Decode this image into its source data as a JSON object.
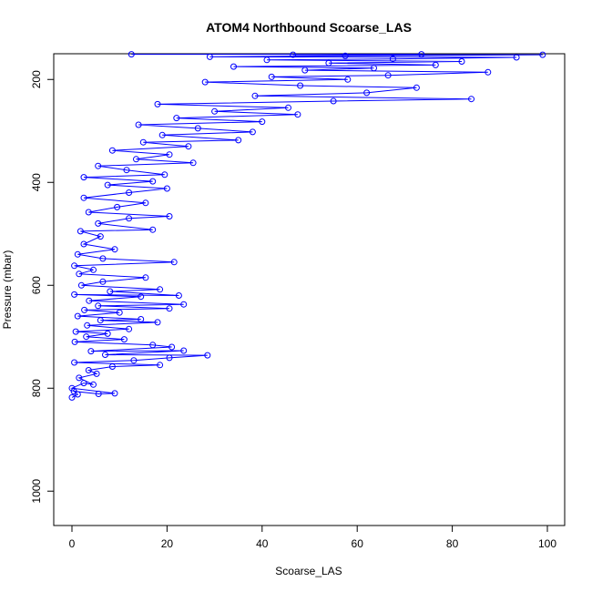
{
  "chart_data": {
    "type": "line",
    "title": "ATOM4 Northbound Scoarse_LAS",
    "xlabel": "Scoarse_LAS",
    "ylabel": "Pressure (mbar)",
    "xlim": [
      0,
      100
    ],
    "ylim": [
      1050,
      150
    ],
    "y_reversed": true,
    "x_ticks": [
      0,
      20,
      40,
      60,
      80,
      100
    ],
    "y_ticks": [
      200,
      400,
      600,
      800,
      1000
    ],
    "grid": false,
    "markers": "open-circle",
    "series_color": "#0000ff",
    "series": [
      {
        "points": [
          [
            0,
            818
          ],
          [
            1.2,
            812
          ],
          [
            0.4,
            806
          ],
          [
            5.6,
            811
          ],
          [
            9,
            810
          ],
          [
            0,
            800
          ],
          [
            2.5,
            790
          ],
          [
            4.5,
            793
          ],
          [
            1.5,
            780
          ],
          [
            5.2,
            772
          ],
          [
            3.5,
            765
          ],
          [
            8.5,
            758
          ],
          [
            18.5,
            755
          ],
          [
            0.5,
            750
          ],
          [
            13,
            746
          ],
          [
            20.5,
            741
          ],
          [
            28.5,
            736
          ],
          [
            7,
            735
          ],
          [
            23.5,
            727
          ],
          [
            4,
            728
          ],
          [
            21,
            720
          ],
          [
            17,
            716
          ],
          [
            0.6,
            710
          ],
          [
            11,
            705
          ],
          [
            3,
            700
          ],
          [
            7.5,
            694
          ],
          [
            0.8,
            690
          ],
          [
            12,
            685
          ],
          [
            3.2,
            678
          ],
          [
            18,
            672
          ],
          [
            6,
            668
          ],
          [
            14.5,
            666
          ],
          [
            1.2,
            660
          ],
          [
            10,
            653
          ],
          [
            2.6,
            648
          ],
          [
            20.5,
            645
          ],
          [
            5.5,
            640
          ],
          [
            23.5,
            637
          ],
          [
            3.6,
            630
          ],
          [
            14.5,
            622
          ],
          [
            0.5,
            618
          ],
          [
            22.5,
            620
          ],
          [
            8,
            612
          ],
          [
            18.5,
            608
          ],
          [
            2,
            600
          ],
          [
            6.5,
            593
          ],
          [
            15.5,
            585
          ],
          [
            1.5,
            578
          ],
          [
            4.5,
            570
          ],
          [
            0.5,
            562
          ],
          [
            21.5,
            555
          ],
          [
            6.5,
            548
          ],
          [
            1.2,
            540
          ],
          [
            9,
            530
          ],
          [
            2.5,
            520
          ],
          [
            6,
            505
          ],
          [
            1.8,
            495
          ],
          [
            17,
            492
          ],
          [
            5.5,
            480
          ],
          [
            12,
            470
          ],
          [
            20.5,
            466
          ],
          [
            3.5,
            458
          ],
          [
            9.5,
            448
          ],
          [
            15.5,
            440
          ],
          [
            2.5,
            430
          ],
          [
            12,
            420
          ],
          [
            20,
            412
          ],
          [
            7.5,
            405
          ],
          [
            17,
            398
          ],
          [
            2.5,
            390
          ],
          [
            19.5,
            385
          ],
          [
            11.5,
            376
          ],
          [
            5.5,
            368
          ],
          [
            25.5,
            362
          ],
          [
            13.5,
            355
          ],
          [
            20.5,
            346
          ],
          [
            8.5,
            338
          ],
          [
            24.5,
            330
          ],
          [
            15,
            322
          ],
          [
            35,
            318
          ],
          [
            19,
            308
          ],
          [
            38,
            302
          ],
          [
            26.5,
            295
          ],
          [
            14,
            288
          ],
          [
            40,
            282
          ],
          [
            22,
            275
          ],
          [
            47.5,
            268
          ],
          [
            30,
            262
          ],
          [
            45.5,
            255
          ],
          [
            18,
            248
          ],
          [
            55,
            242
          ],
          [
            84,
            238
          ],
          [
            38.5,
            232
          ],
          [
            62,
            226
          ],
          [
            72.5,
            216
          ],
          [
            48,
            212
          ],
          [
            28,
            205
          ],
          [
            58,
            200
          ],
          [
            42,
            195
          ],
          [
            66.5,
            192
          ],
          [
            87.5,
            186
          ],
          [
            49,
            182
          ],
          [
            63.5,
            178
          ],
          [
            34,
            175
          ],
          [
            76.5,
            172
          ],
          [
            54,
            168
          ],
          [
            82,
            165
          ],
          [
            41,
            162
          ],
          [
            67.5,
            160
          ],
          [
            93.5,
            157
          ],
          [
            29,
            156
          ],
          [
            57.5,
            154
          ],
          [
            99,
            152
          ],
          [
            46.5,
            152
          ],
          [
            73.5,
            151
          ],
          [
            12.5,
            151
          ]
        ]
      }
    ]
  }
}
